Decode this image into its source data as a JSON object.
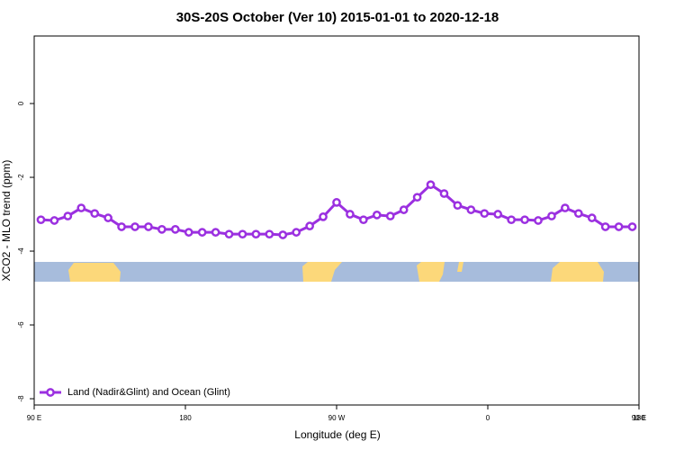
{
  "chart_data": {
    "type": "line",
    "title": "30S-20S October (Ver 10)   2015-01-01 to 2020-12-18",
    "x_label": "Longitude (deg E)",
    "y_label": "XCO2 - MLO trend (ppm)",
    "x": [
      94,
      102,
      110,
      118,
      126,
      134,
      142,
      150,
      158,
      166,
      174,
      182,
      190,
      198,
      206,
      214,
      222,
      230,
      238,
      246,
      254,
      262,
      270,
      278,
      286,
      294,
      302,
      310,
      318,
      326,
      334,
      342,
      350,
      358,
      366,
      374,
      382,
      390,
      398,
      406,
      414,
      422,
      430,
      438,
      446
    ],
    "series": [
      {
        "name": "Land (Nadir&Glint) and Ocean (Glint)",
        "color": "#9b30e0",
        "values": [
          -3.15,
          -3.17,
          -3.05,
          -2.83,
          -2.98,
          -3.1,
          -3.34,
          -3.34,
          -3.34,
          -3.41,
          -3.41,
          -3.49,
          -3.49,
          -3.49,
          -3.54,
          -3.54,
          -3.54,
          -3.54,
          -3.56,
          -3.49,
          -3.32,
          -3.07,
          -2.68,
          -3.0,
          -3.15,
          -3.02,
          -3.05,
          -2.88,
          -2.54,
          -2.2,
          -2.44,
          -2.76,
          -2.88,
          -2.98,
          -3.0,
          -3.15,
          -3.15,
          -3.17,
          -3.05,
          -2.83,
          -2.98,
          -3.1,
          -3.34,
          -3.34,
          -3.34
        ]
      }
    ],
    "xlim": [
      90,
      450
    ],
    "xticks": [
      {
        "value": 90,
        "label": "90 E"
      },
      {
        "value": 180,
        "label": "180"
      },
      {
        "value": 270,
        "label": "90 W"
      },
      {
        "value": 360,
        "label": "0"
      },
      {
        "value": 450,
        "label": "90 E"
      }
    ],
    "xticks_extra": [
      {
        "value": 540,
        "label": "180"
      }
    ],
    "ylim": [
      -8.17,
      1.83
    ],
    "yticks": [
      0,
      -2,
      -4,
      -6,
      -8
    ],
    "legend": "bottom-left"
  }
}
